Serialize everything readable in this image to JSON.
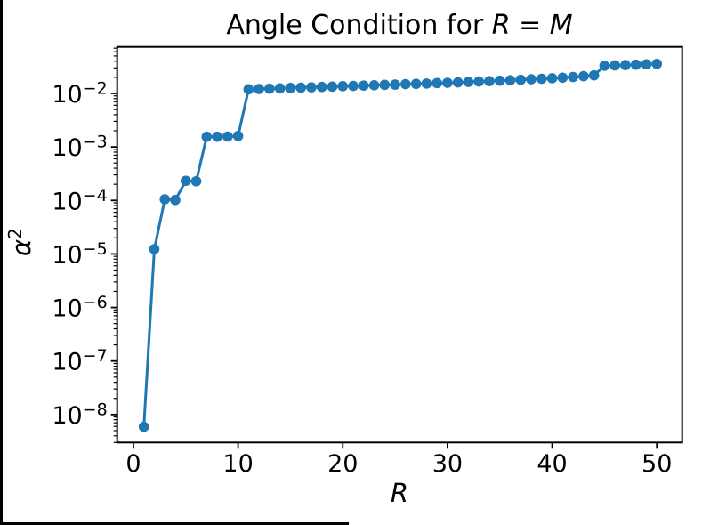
{
  "figure": {
    "background": "#ffffff",
    "window_edge_color": "#000000"
  },
  "chart_data": {
    "type": "line",
    "title": "Angle Condition for R = M",
    "title_parts": [
      {
        "text": "Angle Condition for ",
        "italic": false
      },
      {
        "text": "R",
        "italic": true
      },
      {
        "text": " = ",
        "italic": false
      },
      {
        "text": "M",
        "italic": true
      }
    ],
    "xlabel": "R",
    "xlabel_italic": true,
    "ylabel_base": "α",
    "ylabel_sup": "2",
    "yscale": "log",
    "grid": false,
    "legend": null,
    "line_color": "#1f77b4",
    "marker": "circle",
    "x_ticks": [
      0,
      10,
      20,
      30,
      40,
      50
    ],
    "y_tick_exponents": [
      -2,
      -3,
      -4,
      -5,
      -6,
      -7,
      -8
    ],
    "xlim": [
      -1.55,
      52.42
    ],
    "ylim": [
      3e-09,
      0.074
    ],
    "series": [
      {
        "name": "alpha-squared",
        "color": "#1f77b4",
        "x": [
          1,
          2,
          3,
          4,
          5,
          6,
          7,
          8,
          9,
          10,
          11,
          12,
          13,
          14,
          15,
          16,
          17,
          18,
          19,
          20,
          21,
          22,
          23,
          24,
          25,
          26,
          27,
          28,
          29,
          30,
          31,
          32,
          33,
          34,
          35,
          36,
          37,
          38,
          39,
          40,
          41,
          42,
          43,
          44,
          45,
          46,
          47,
          48,
          49,
          50
        ],
        "y": [
          5.9e-09,
          1.23e-05,
          0.000105,
          0.000102,
          0.000232,
          0.000228,
          0.00155,
          0.00155,
          0.00156,
          0.0016,
          0.01195,
          0.0121,
          0.01225,
          0.0124,
          0.01265,
          0.0128,
          0.013,
          0.0132,
          0.0134,
          0.01365,
          0.0138,
          0.014,
          0.0142,
          0.01445,
          0.0146,
          0.0149,
          0.0151,
          0.0153,
          0.0156,
          0.0158,
          0.0161,
          0.0164,
          0.0167,
          0.017,
          0.0173,
          0.0176,
          0.018,
          0.0184,
          0.0188,
          0.0192,
          0.0197,
          0.0203,
          0.021,
          0.0218,
          0.0328,
          0.0334,
          0.0339,
          0.0344,
          0.035,
          0.0357
        ]
      }
    ]
  }
}
